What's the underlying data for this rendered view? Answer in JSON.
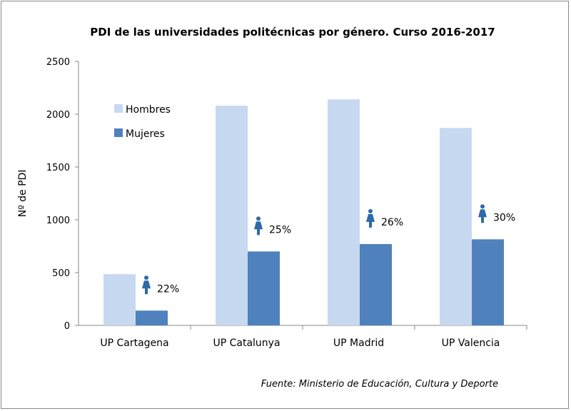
{
  "chart_data": {
    "type": "bar",
    "title": "PDI de las universidades politécnicas por género. Curso 2016-2017",
    "ylabel": "Nº de PDI",
    "xlabel": "",
    "ylim": [
      0,
      2500
    ],
    "yticks": [
      0,
      500,
      1000,
      1500,
      2000,
      2500
    ],
    "categories": [
      "UP Cartagena",
      "UP Catalunya",
      "UP Madrid",
      "UP Valencia"
    ],
    "series": [
      {
        "name": "Hombres",
        "color": "#c6d9f1",
        "values": [
          485,
          2080,
          2140,
          1870
        ]
      },
      {
        "name": "Mujeres",
        "color": "#4f81bd",
        "values": [
          140,
          700,
          770,
          815
        ]
      }
    ],
    "annotations": [
      "22%",
      "25%",
      "26%",
      "30%"
    ],
    "annotation_icon": "woman-icon",
    "legend": "top-left",
    "grid": false,
    "source": "Fuente: Ministerio de Educación, Cultura y Deporte"
  }
}
